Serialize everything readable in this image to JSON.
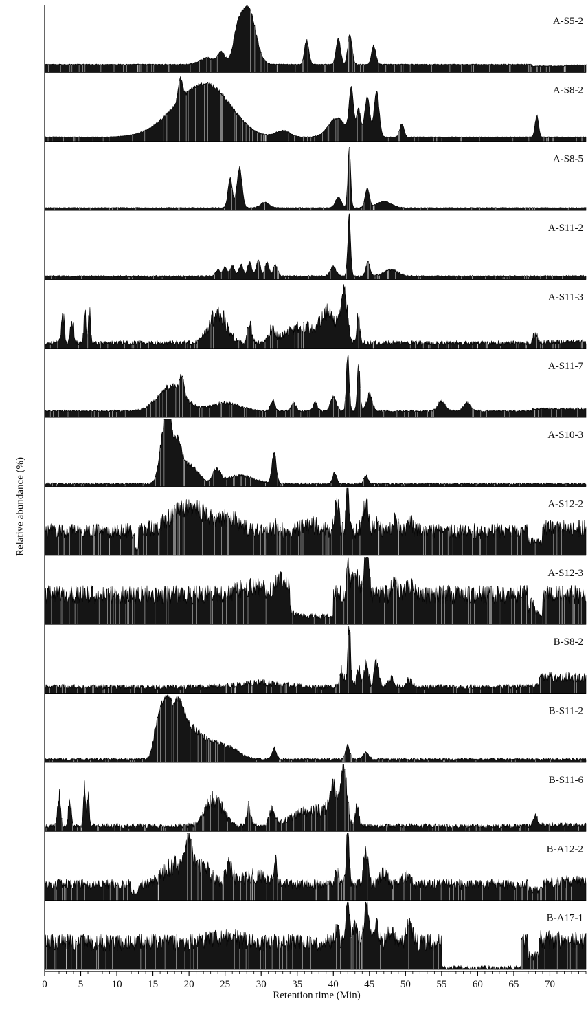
{
  "chart_data": {
    "type": "line",
    "title": "",
    "xlabel": "Retention time (Min)",
    "ylabel": "Relative abundance (%)",
    "xlim": [
      0,
      75
    ],
    "xticks": [
      0,
      5,
      10,
      15,
      20,
      25,
      30,
      35,
      40,
      45,
      50,
      55,
      60,
      65,
      70
    ],
    "stacked_traces": true,
    "grid": false,
    "legend": "none",
    "series": [
      {
        "name": "A-S5-2",
        "base": 0.15,
        "noise": "low",
        "late": [
          [
            67.5,
            72,
            0.12
          ],
          [
            72,
            75,
            0.14
          ]
        ],
        "peaks": [
          [
            28.2,
            1.05,
            1.0
          ],
          [
            26.7,
            0.45,
            0.6
          ],
          [
            36.3,
            0.45,
            0.3
          ],
          [
            40.7,
            0.5,
            0.3
          ],
          [
            42.3,
            0.55,
            0.3
          ],
          [
            45.6,
            0.35,
            0.3
          ],
          [
            24.5,
            0.22,
            0.5
          ],
          [
            22.5,
            0.12,
            1.0
          ]
        ]
      },
      {
        "name": "A-S8-2",
        "base": 0.08,
        "noise": "low",
        "late": [
          [
            68,
            75,
            0.08
          ]
        ],
        "peaks": [
          [
            20,
            0.55,
            3.5
          ],
          [
            23.5,
            0.6,
            3.0
          ],
          [
            18.8,
            0.4,
            0.3
          ],
          [
            42.5,
            0.85,
            0.3
          ],
          [
            44.7,
            0.75,
            0.35
          ],
          [
            46,
            0.85,
            0.35
          ],
          [
            43.5,
            0.5,
            0.3
          ],
          [
            40.5,
            0.35,
            1.2
          ],
          [
            49.5,
            0.25,
            0.3
          ],
          [
            68.2,
            0.4,
            0.25
          ],
          [
            33,
            0.12,
            1.0
          ]
        ]
      },
      {
        "name": "A-S8-5",
        "base": 0.05,
        "noise": "low",
        "late": [
          [
            68,
            75,
            0.05
          ]
        ],
        "peaks": [
          [
            27,
            0.75,
            0.35
          ],
          [
            25.7,
            0.55,
            0.3
          ],
          [
            42.2,
            1.1,
            0.2
          ],
          [
            44.7,
            0.35,
            0.3
          ],
          [
            40.7,
            0.2,
            0.4
          ],
          [
            30.5,
            0.1,
            0.6
          ],
          [
            47,
            0.12,
            1.0
          ]
        ]
      },
      {
        "name": "A-S11-2",
        "base": 0.06,
        "noise": "medium",
        "late": [
          [
            68,
            75,
            0.06
          ]
        ],
        "peaks": [
          [
            42.2,
            1.1,
            0.2
          ],
          [
            44.8,
            0.25,
            0.3
          ],
          [
            40,
            0.18,
            0.4
          ],
          [
            26,
            0.2,
            0.3
          ],
          [
            27.2,
            0.22,
            0.3
          ],
          [
            28.4,
            0.25,
            0.3
          ],
          [
            29.6,
            0.28,
            0.3
          ],
          [
            30.8,
            0.24,
            0.3
          ],
          [
            32,
            0.22,
            0.3
          ],
          [
            25,
            0.16,
            0.3
          ],
          [
            24,
            0.12,
            0.3
          ],
          [
            48,
            0.12,
            1.0
          ]
        ]
      },
      {
        "name": "A-S11-3",
        "base": 0.1,
        "noise": "high",
        "late": [
          [
            67.5,
            75,
            0.12
          ]
        ],
        "peaks": [
          [
            2.5,
            0.55,
            0.2
          ],
          [
            3.8,
            0.5,
            0.2
          ],
          [
            5.6,
            0.7,
            0.15
          ],
          [
            6.2,
            0.6,
            0.15
          ],
          [
            24,
            0.55,
            1.2
          ],
          [
            28.4,
            0.35,
            0.3
          ],
          [
            41.5,
            0.95,
            0.4
          ],
          [
            43.5,
            0.5,
            0.2
          ],
          [
            39.5,
            0.45,
            1.0
          ],
          [
            36,
            0.3,
            2.5
          ],
          [
            31.5,
            0.2,
            0.4
          ],
          [
            68,
            0.15,
            0.3
          ]
        ]
      },
      {
        "name": "A-S11-7",
        "base": 0.12,
        "noise": "medium",
        "late": [
          [
            67.5,
            75,
            0.16
          ]
        ],
        "peaks": [
          [
            17.5,
            0.45,
            1.8
          ],
          [
            19,
            0.35,
            0.3
          ],
          [
            42,
            1.05,
            0.2
          ],
          [
            43.5,
            0.85,
            0.2
          ],
          [
            40,
            0.25,
            0.4
          ],
          [
            45,
            0.3,
            0.4
          ],
          [
            31.6,
            0.2,
            0.3
          ],
          [
            34.5,
            0.15,
            0.3
          ],
          [
            37.5,
            0.15,
            0.3
          ],
          [
            55,
            0.18,
            0.5
          ],
          [
            58.5,
            0.15,
            0.5
          ],
          [
            25,
            0.15,
            2.0
          ]
        ]
      },
      {
        "name": "A-S10-3",
        "base": 0.05,
        "noise": "medium",
        "late": [
          [
            68,
            75,
            0.05
          ]
        ],
        "peaks": [
          [
            16.5,
            0.9,
            0.6
          ],
          [
            17.2,
            0.85,
            0.4
          ],
          [
            18.3,
            0.7,
            0.6
          ],
          [
            20,
            0.35,
            1.2
          ],
          [
            23.8,
            0.25,
            0.5
          ],
          [
            31.8,
            0.55,
            0.3
          ],
          [
            40.2,
            0.2,
            0.3
          ],
          [
            44.5,
            0.15,
            0.3
          ],
          [
            27,
            0.15,
            2.0
          ]
        ]
      },
      {
        "name": "A-S12-2",
        "base": 0.45,
        "noise": "high",
        "late": [
          [
            12.5,
            13,
            0.1
          ],
          [
            67,
            69,
            0.25
          ],
          [
            69,
            75,
            0.5
          ]
        ],
        "peaks": [
          [
            20,
            0.45,
            2.5
          ],
          [
            25.5,
            0.2,
            1.5
          ],
          [
            40.5,
            0.55,
            0.3
          ],
          [
            42,
            0.85,
            0.2
          ],
          [
            44.5,
            0.5,
            0.4
          ],
          [
            46,
            0.2,
            0.3
          ],
          [
            48.5,
            0.2,
            0.4
          ],
          [
            50.5,
            0.2,
            0.4
          ],
          [
            37,
            0.1,
            1.5
          ],
          [
            32,
            0.08,
            0.5
          ]
        ]
      },
      {
        "name": "A-S12-3",
        "base": 0.55,
        "noise": "high",
        "late": [
          [
            34,
            40,
            0.15
          ],
          [
            67,
            69,
            0.2
          ],
          [
            69,
            75,
            0.55
          ]
        ],
        "peaks": [
          [
            29,
            0.15,
            2.0
          ],
          [
            33,
            0.3,
            0.8
          ],
          [
            42,
            0.6,
            0.2
          ],
          [
            44.6,
            0.95,
            0.3
          ],
          [
            43,
            0.4,
            0.5
          ],
          [
            48.5,
            0.25,
            0.4
          ],
          [
            50.5,
            0.2,
            0.4
          ],
          [
            67.5,
            0.2,
            0.3
          ]
        ]
      },
      {
        "name": "B-S8-2",
        "base": 0.12,
        "noise": "high",
        "late": [
          [
            67.5,
            68.5,
            0.15
          ],
          [
            68.5,
            75,
            0.3
          ]
        ],
        "peaks": [
          [
            42.2,
            1.15,
            0.2
          ],
          [
            41.2,
            0.3,
            0.3
          ],
          [
            44.6,
            0.4,
            0.3
          ],
          [
            46,
            0.45,
            0.3
          ],
          [
            43.5,
            0.3,
            0.3
          ],
          [
            48,
            0.15,
            0.4
          ],
          [
            50.5,
            0.12,
            0.4
          ],
          [
            30,
            0.08,
            3.0
          ]
        ]
      },
      {
        "name": "B-S11-2",
        "base": 0.06,
        "noise": "medium",
        "late": [
          [
            68,
            75,
            0.06
          ]
        ],
        "peaks": [
          [
            15.8,
            0.75,
            0.6
          ],
          [
            17,
            1.0,
            0.6
          ],
          [
            18.5,
            0.85,
            0.7
          ],
          [
            20,
            0.5,
            1.2
          ],
          [
            22.5,
            0.3,
            1.5
          ],
          [
            25.5,
            0.2,
            1.5
          ],
          [
            31.8,
            0.2,
            0.3
          ],
          [
            42,
            0.25,
            0.3
          ],
          [
            44.5,
            0.12,
            0.4
          ]
        ]
      },
      {
        "name": "B-S11-6",
        "base": 0.1,
        "noise": "high",
        "late": [
          [
            67.5,
            75,
            0.12
          ]
        ],
        "peaks": [
          [
            2,
            0.55,
            0.2
          ],
          [
            3.5,
            0.5,
            0.2
          ],
          [
            5.5,
            0.75,
            0.15
          ],
          [
            6,
            0.6,
            0.15
          ],
          [
            23.5,
            0.5,
            1.2
          ],
          [
            28.3,
            0.35,
            0.3
          ],
          [
            31.5,
            0.25,
            0.4
          ],
          [
            41.5,
            1.0,
            0.4
          ],
          [
            40,
            0.6,
            0.6
          ],
          [
            43.3,
            0.45,
            0.2
          ],
          [
            37,
            0.3,
            2.5
          ],
          [
            68,
            0.15,
            0.3
          ]
        ]
      },
      {
        "name": "B-A12-2",
        "base": 0.3,
        "noise": "high",
        "late": [
          [
            12,
            13,
            0.15
          ],
          [
            67,
            69,
            0.2
          ],
          [
            69,
            75,
            0.35
          ]
        ],
        "peaks": [
          [
            20,
            0.75,
            0.5
          ],
          [
            18,
            0.35,
            1.5
          ],
          [
            22,
            0.3,
            1.0
          ],
          [
            25.5,
            0.3,
            0.5
          ],
          [
            32,
            0.45,
            0.15
          ],
          [
            42,
            1.05,
            0.2
          ],
          [
            44.5,
            0.6,
            0.3
          ],
          [
            40.5,
            0.25,
            0.3
          ],
          [
            47,
            0.2,
            0.5
          ],
          [
            50,
            0.15,
            0.5
          ],
          [
            29,
            0.15,
            2.0
          ]
        ]
      },
      {
        "name": "B-A17-1",
        "base": 0.5,
        "noise": "high",
        "late": [
          [
            55,
            66,
            0.03
          ],
          [
            67,
            68.5,
            0.25
          ],
          [
            68.5,
            75,
            0.55
          ]
        ],
        "peaks": [
          [
            42,
            0.95,
            0.2
          ],
          [
            44.6,
            0.8,
            0.3
          ],
          [
            43,
            0.4,
            0.3
          ],
          [
            46,
            0.3,
            0.3
          ],
          [
            50.5,
            0.3,
            0.4
          ],
          [
            48,
            0.2,
            0.4
          ],
          [
            40.5,
            0.2,
            0.3
          ],
          [
            25,
            0.1,
            2.0
          ]
        ]
      }
    ]
  }
}
